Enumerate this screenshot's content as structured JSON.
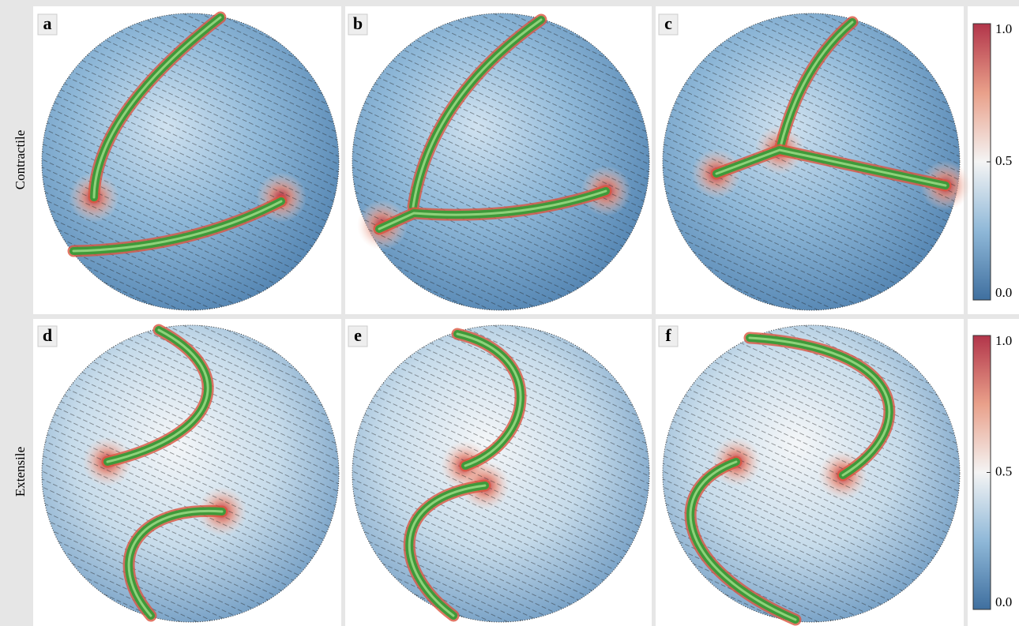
{
  "row_labels": [
    "Contractile",
    "Extensile"
  ],
  "panels": [
    {
      "label": "a"
    },
    {
      "label": "b"
    },
    {
      "label": "c"
    },
    {
      "label": "d"
    },
    {
      "label": "e"
    },
    {
      "label": "f"
    }
  ],
  "colorbars": [
    {
      "lim": [
        0,
        1
      ],
      "ticks": [
        {
          "value": 1,
          "label": "1.0"
        },
        {
          "value": 0.5,
          "label": "0.5"
        },
        {
          "value": 0,
          "label": "0.0"
        }
      ]
    },
    {
      "lim": [
        0,
        1
      ],
      "ticks": [
        {
          "value": 1,
          "label": "1.0"
        },
        {
          "value": 0.5,
          "label": "0.5"
        },
        {
          "value": 0,
          "label": "0.0"
        }
      ]
    }
  ]
}
